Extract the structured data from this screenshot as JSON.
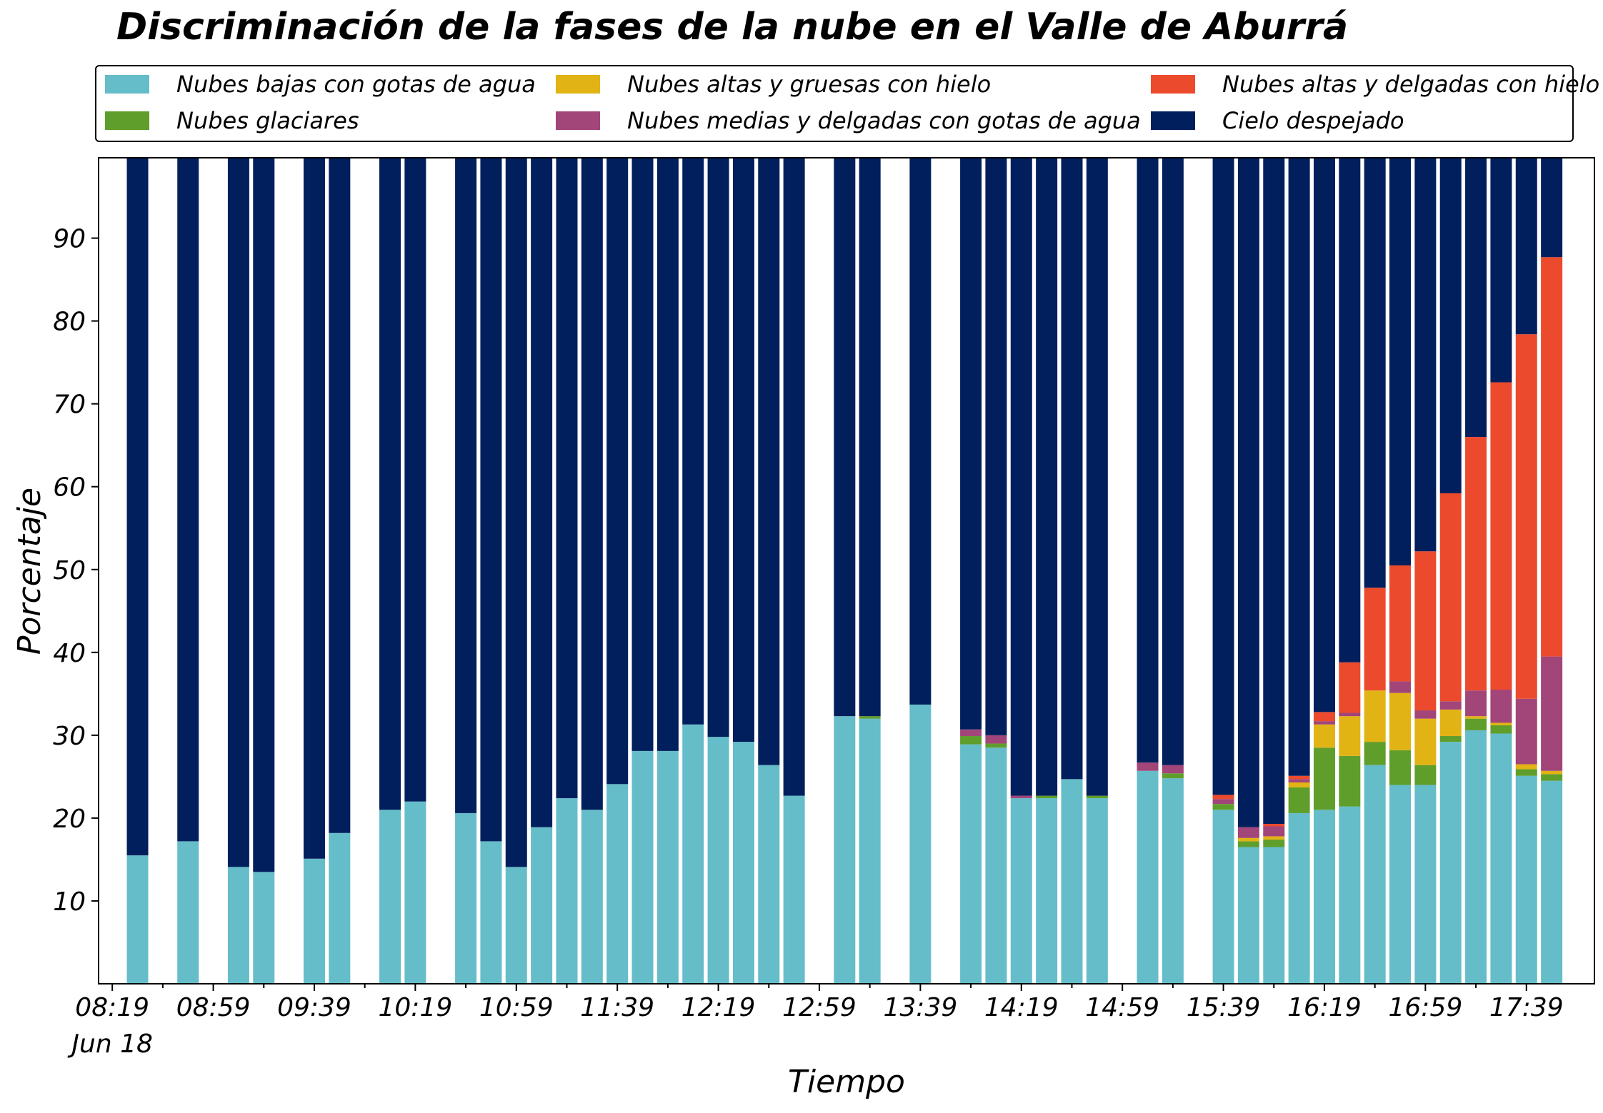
{
  "chart_data": {
    "type": "bar",
    "stacked": true,
    "title": "Discriminación de la fases de la nube en el Valle de Aburrá",
    "xlabel": "Tiempo",
    "ylabel": "Porcentaje",
    "ylim": [
      0,
      100
    ],
    "yticks": [
      10,
      20,
      30,
      40,
      50,
      60,
      70,
      80,
      90
    ],
    "xlim": [
      0,
      58
    ],
    "xtick_labels": [
      {
        "slot": 0.5,
        "label": "08:19"
      },
      {
        "slot": 4.5,
        "label": "08:59"
      },
      {
        "slot": 8.5,
        "label": "09:39"
      },
      {
        "slot": 12.5,
        "label": "10:19"
      },
      {
        "slot": 16.5,
        "label": "10:59"
      },
      {
        "slot": 20.5,
        "label": "11:39"
      },
      {
        "slot": 24.5,
        "label": "12:19"
      },
      {
        "slot": 28.5,
        "label": "12:59"
      },
      {
        "slot": 32.5,
        "label": "13:39"
      },
      {
        "slot": 36.5,
        "label": "14:19"
      },
      {
        "slot": 40.5,
        "label": "14:59"
      },
      {
        "slot": 44.5,
        "label": "15:39"
      },
      {
        "slot": 48.5,
        "label": "16:19"
      },
      {
        "slot": 52.5,
        "label": "16:59"
      },
      {
        "slot": 56.5,
        "label": "17:39"
      }
    ],
    "date_label": "Jun 18",
    "grid": false,
    "legend_position": "top",
    "series_names": [
      "Nubes bajas con gotas de agua",
      "Nubes glaciares",
      "Nubes altas y gruesas con hielo",
      "Nubes medias y delgadas con gotas de agua",
      "Nubes altas y delgadas con hielo",
      "Cielo despejado"
    ],
    "series_colors": [
      "#65bdc9",
      "#5f9e2b",
      "#e2b314",
      "#a24579",
      "#eb4a2c",
      "#021f5d"
    ],
    "bars": [
      {
        "slot": 1,
        "v": [
          15.5,
          0,
          0,
          0,
          0,
          84.5
        ]
      },
      {
        "slot": 3,
        "v": [
          17.2,
          0,
          0,
          0,
          0,
          82.8
        ]
      },
      {
        "slot": 5,
        "v": [
          14.1,
          0,
          0,
          0,
          0,
          85.9
        ]
      },
      {
        "slot": 6,
        "v": [
          13.5,
          0,
          0,
          0,
          0,
          86.5
        ]
      },
      {
        "slot": 8,
        "v": [
          15.1,
          0,
          0,
          0,
          0,
          84.9
        ]
      },
      {
        "slot": 9,
        "v": [
          18.2,
          0,
          0,
          0,
          0,
          81.8
        ]
      },
      {
        "slot": 11,
        "v": [
          21.0,
          0,
          0,
          0,
          0,
          79.0
        ]
      },
      {
        "slot": 12,
        "v": [
          22.0,
          0,
          0,
          0,
          0,
          78.0
        ]
      },
      {
        "slot": 14,
        "v": [
          20.6,
          0,
          0,
          0,
          0,
          79.4
        ]
      },
      {
        "slot": 15,
        "v": [
          17.2,
          0,
          0,
          0,
          0,
          82.8
        ]
      },
      {
        "slot": 16,
        "v": [
          14.1,
          0,
          0,
          0,
          0,
          85.9
        ]
      },
      {
        "slot": 17,
        "v": [
          18.9,
          0,
          0,
          0,
          0,
          81.1
        ]
      },
      {
        "slot": 18,
        "v": [
          22.4,
          0,
          0,
          0,
          0,
          77.6
        ]
      },
      {
        "slot": 19,
        "v": [
          21.0,
          0,
          0,
          0,
          0,
          79.0
        ]
      },
      {
        "slot": 20,
        "v": [
          24.1,
          0,
          0,
          0,
          0,
          75.9
        ]
      },
      {
        "slot": 21,
        "v": [
          28.1,
          0,
          0,
          0,
          0,
          71.9
        ]
      },
      {
        "slot": 22,
        "v": [
          28.1,
          0,
          0,
          0,
          0,
          71.9
        ]
      },
      {
        "slot": 23,
        "v": [
          31.3,
          0,
          0,
          0,
          0,
          68.7
        ]
      },
      {
        "slot": 24,
        "v": [
          29.8,
          0,
          0,
          0,
          0,
          70.2
        ]
      },
      {
        "slot": 25,
        "v": [
          29.2,
          0,
          0,
          0,
          0,
          70.8
        ]
      },
      {
        "slot": 26,
        "v": [
          26.4,
          0,
          0,
          0,
          0,
          73.6
        ]
      },
      {
        "slot": 27,
        "v": [
          22.7,
          0,
          0,
          0,
          0,
          77.3
        ]
      },
      {
        "slot": 29,
        "v": [
          32.3,
          0,
          0,
          0,
          0,
          67.7
        ]
      },
      {
        "slot": 30,
        "v": [
          32.0,
          0.3,
          0,
          0,
          0,
          67.7
        ]
      },
      {
        "slot": 32,
        "v": [
          33.7,
          0,
          0,
          0,
          0,
          66.3
        ]
      },
      {
        "slot": 34,
        "v": [
          28.9,
          1.0,
          0,
          0.8,
          0,
          69.3
        ]
      },
      {
        "slot": 35,
        "v": [
          28.5,
          0.5,
          0,
          1.0,
          0,
          70.0
        ]
      },
      {
        "slot": 36,
        "v": [
          22.4,
          0,
          0,
          0.3,
          0,
          77.3
        ]
      },
      {
        "slot": 37,
        "v": [
          22.4,
          0.3,
          0,
          0,
          0,
          77.3
        ]
      },
      {
        "slot": 38,
        "v": [
          24.7,
          0,
          0,
          0,
          0,
          75.3
        ]
      },
      {
        "slot": 39,
        "v": [
          22.4,
          0.3,
          0,
          0,
          0,
          77.3
        ]
      },
      {
        "slot": 41,
        "v": [
          25.7,
          0,
          0,
          1.0,
          0,
          73.3
        ]
      },
      {
        "slot": 42,
        "v": [
          24.8,
          0.6,
          0,
          1.0,
          0,
          73.6
        ]
      },
      {
        "slot": 44,
        "v": [
          21.0,
          0.7,
          0,
          0.6,
          0.5,
          77.2
        ]
      },
      {
        "slot": 45,
        "v": [
          16.5,
          0.7,
          0.4,
          1.3,
          0,
          81.1
        ]
      },
      {
        "slot": 46,
        "v": [
          16.5,
          0.9,
          0.4,
          1.2,
          0.3,
          80.7
        ]
      },
      {
        "slot": 47,
        "v": [
          20.6,
          3.1,
          0.6,
          0.4,
          0.4,
          74.9
        ]
      },
      {
        "slot": 48,
        "v": [
          21.0,
          7.5,
          2.8,
          0.4,
          1.1,
          67.2
        ]
      },
      {
        "slot": 49,
        "v": [
          21.4,
          6.1,
          4.8,
          0.4,
          6.1,
          61.2
        ]
      },
      {
        "slot": 50,
        "v": [
          26.4,
          2.8,
          6.2,
          0,
          12.4,
          52.2
        ]
      },
      {
        "slot": 51,
        "v": [
          24.0,
          4.2,
          6.9,
          1.4,
          14.0,
          49.5
        ]
      },
      {
        "slot": 52,
        "v": [
          24.0,
          2.4,
          5.6,
          1.0,
          19.2,
          47.8
        ]
      },
      {
        "slot": 53,
        "v": [
          29.2,
          0.7,
          3.2,
          1.0,
          25.1,
          40.8
        ]
      },
      {
        "slot": 54,
        "v": [
          30.6,
          1.4,
          0.3,
          3.1,
          30.6,
          34.0
        ]
      },
      {
        "slot": 55,
        "v": [
          30.2,
          1.0,
          0.3,
          4.0,
          37.1,
          27.4
        ]
      },
      {
        "slot": 56,
        "v": [
          25.1,
          0.8,
          0.6,
          7.9,
          44.0,
          21.6
        ]
      },
      {
        "slot": 57,
        "v": [
          24.5,
          0.8,
          0.4,
          13.8,
          48.2,
          12.3
        ]
      }
    ]
  }
}
